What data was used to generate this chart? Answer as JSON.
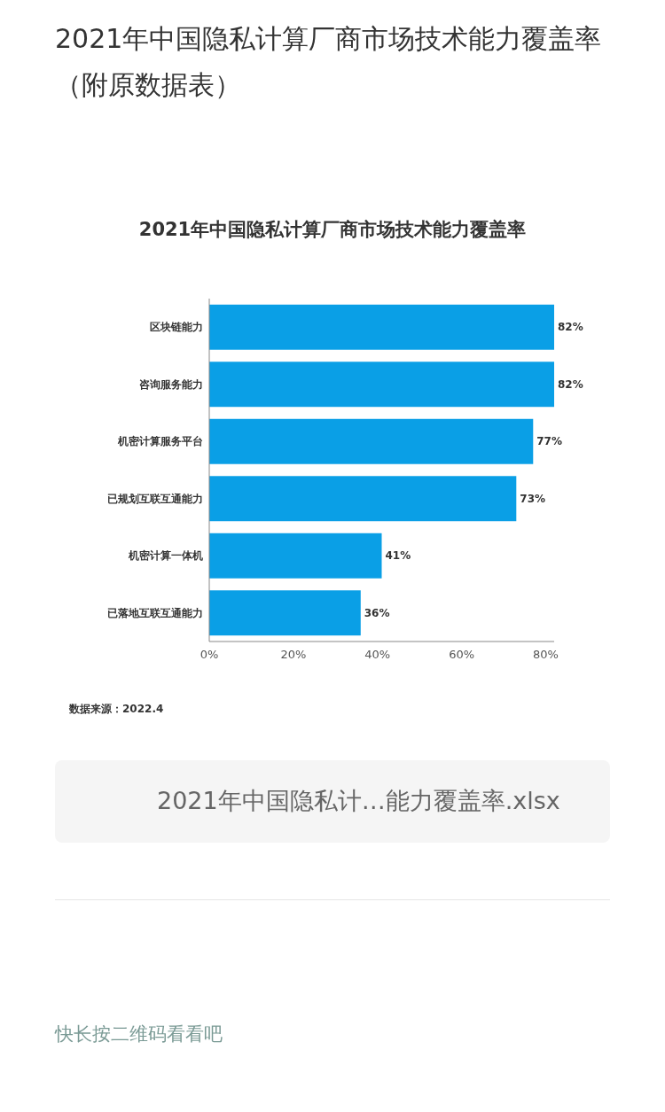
{
  "chart_data": {
    "type": "bar",
    "orientation": "horizontal",
    "title": "2021年中国隐私计算厂商市场技术能力覆盖率（附原数据表）",
    "subtitle": "2021年中国隐私计算厂商市场技术能力覆盖率",
    "categories": [
      "区块链能力",
      "咨询服务能力",
      "机密计算服务平台",
      "已规划互联互通能力",
      "机密计算一体机",
      "已落地互联互通能力"
    ],
    "values": [
      82,
      82,
      77,
      73,
      41,
      36
    ],
    "value_labels": [
      "82%",
      "82%",
      "77%",
      "73%",
      "41%",
      "36%"
    ],
    "color": "#0a9fe6",
    "xlim": [
      0,
      82
    ],
    "xticks": [
      {
        "value": 0,
        "label": "0%"
      },
      {
        "value": 20,
        "label": "20%"
      },
      {
        "value": 40,
        "label": "40%"
      },
      {
        "value": 60,
        "label": "60%"
      },
      {
        "value": 80,
        "label": "80%"
      }
    ],
    "grid": false,
    "annotations": [
      "数据来源：2022.4",
      "2021年中国隐私计…能力覆盖率.xlsx",
      "快长按二维码看看吧"
    ]
  }
}
